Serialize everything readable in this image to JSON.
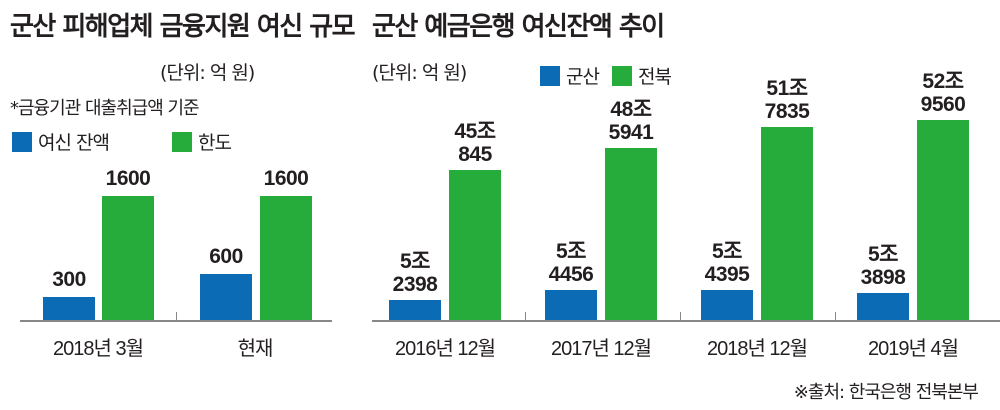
{
  "colors": {
    "blue": "#0b6bb5",
    "green": "#25ac3a"
  },
  "chart_data": [
    {
      "type": "bar",
      "title": "군산 피해업체 금융지원 여신 규모",
      "unit": "(단위: 억 원)",
      "note": "*금융기관 대출취급액 기준",
      "categories": [
        "2018년 3월",
        "현재"
      ],
      "series": [
        {
          "name": "여신 잔액",
          "values": [
            300,
            600
          ],
          "labels": [
            "300",
            "600"
          ]
        },
        {
          "name": "한도",
          "values": [
            1600,
            1600
          ],
          "labels": [
            "1600",
            "1600"
          ]
        }
      ],
      "legend": "top-left"
    },
    {
      "type": "bar",
      "title": "군산 예금은행 여신잔액 추이",
      "unit": "(단위: 억 원)",
      "categories": [
        "2016년 12월",
        "2017년 12월",
        "2018년 12월",
        "2019년 4월"
      ],
      "series": [
        {
          "name": "군산",
          "values": [
            52398,
            54456,
            54395,
            53898
          ],
          "labels": [
            [
              "5조",
              "2398"
            ],
            [
              "5조",
              "4456"
            ],
            [
              "5조",
              "4395"
            ],
            [
              "5조",
              "3898"
            ]
          ]
        },
        {
          "name": "전북",
          "values": [
            450845,
            485941,
            517835,
            529560
          ],
          "labels": [
            [
              "45조",
              "845"
            ],
            [
              "48조",
              "5941"
            ],
            [
              "51조",
              "7835"
            ],
            [
              "52조",
              "9560"
            ]
          ]
        }
      ],
      "legend": "top-left"
    }
  ],
  "source": "※출처: 한국은행 전북본부"
}
